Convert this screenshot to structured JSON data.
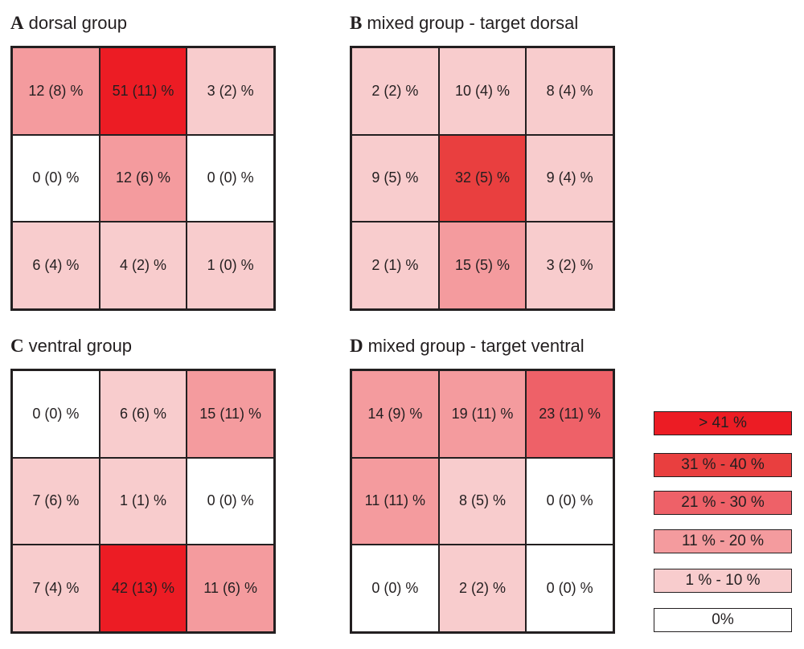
{
  "colors": {
    "lvl0": "#ffffff",
    "lvl1": "#f8cccd",
    "lvl2": "#f49b9e",
    "lvl3": "#ee6168",
    "lvl4": "#e93f3f",
    "lvl5": "#ec1c24"
  },
  "chart_data": {
    "type": "heatmap",
    "panels": [
      {
        "letter": "A",
        "title": "dorsal group",
        "cells": [
          {
            "label": "12 (8) %",
            "value": 12
          },
          {
            "label": "51 (11) %",
            "value": 51
          },
          {
            "label": "3 (2) %",
            "value": 3
          },
          {
            "label": "0 (0) %",
            "value": 0
          },
          {
            "label": "12 (6) %",
            "value": 12
          },
          {
            "label": "0 (0) %",
            "value": 0
          },
          {
            "label": "6 (4) %",
            "value": 6
          },
          {
            "label": "4 (2) %",
            "value": 4
          },
          {
            "label": "1 (0) %",
            "value": 1
          }
        ]
      },
      {
        "letter": "B",
        "title": "mixed group - target dorsal",
        "cells": [
          {
            "label": "2 (2) %",
            "value": 2
          },
          {
            "label": "10 (4) %",
            "value": 10
          },
          {
            "label": "8 (4) %",
            "value": 8
          },
          {
            "label": "9 (5) %",
            "value": 9
          },
          {
            "label": "32 (5) %",
            "value": 32
          },
          {
            "label": "9 (4) %",
            "value": 9
          },
          {
            "label": "2 (1) %",
            "value": 2
          },
          {
            "label": "15 (5) %",
            "value": 15
          },
          {
            "label": "3 (2) %",
            "value": 3
          }
        ]
      },
      {
        "letter": "C",
        "title": "ventral group",
        "cells": [
          {
            "label": "0 (0) %",
            "value": 0
          },
          {
            "label": "6 (6) %",
            "value": 6
          },
          {
            "label": "15 (11) %",
            "value": 15
          },
          {
            "label": "7 (6) %",
            "value": 7
          },
          {
            "label": "1 (1) %",
            "value": 1
          },
          {
            "label": "0 (0) %",
            "value": 0
          },
          {
            "label": "7 (4) %",
            "value": 7
          },
          {
            "label": "42 (13) %",
            "value": 42
          },
          {
            "label": "11 (6) %",
            "value": 11
          }
        ]
      },
      {
        "letter": "D",
        "title": "mixed group - target ventral",
        "cells": [
          {
            "label": "14 (9) %",
            "value": 14
          },
          {
            "label": "19 (11) %",
            "value": 19
          },
          {
            "label": "23 (11) %",
            "value": 23
          },
          {
            "label": "11 (11) %",
            "value": 11
          },
          {
            "label": "8 (5) %",
            "value": 8
          },
          {
            "label": "0 (0) %",
            "value": 0
          },
          {
            "label": "0 (0) %",
            "value": 0
          },
          {
            "label": "2 (2) %",
            "value": 2
          },
          {
            "label": "0 (0) %",
            "value": 0
          }
        ]
      }
    ],
    "legend": [
      {
        "label": ">  41 %",
        "color": "#ec1c24"
      },
      {
        "label": "31 % - 40  %",
        "color": "#e93f3f"
      },
      {
        "label": "21 % - 30 %",
        "color": "#ee6168"
      },
      {
        "label": "11 % - 20 %",
        "color": "#f49b9e"
      },
      {
        "label": "1 % - 10 %",
        "color": "#f8cccd"
      },
      {
        "label": "0%",
        "color": "#ffffff"
      }
    ]
  }
}
